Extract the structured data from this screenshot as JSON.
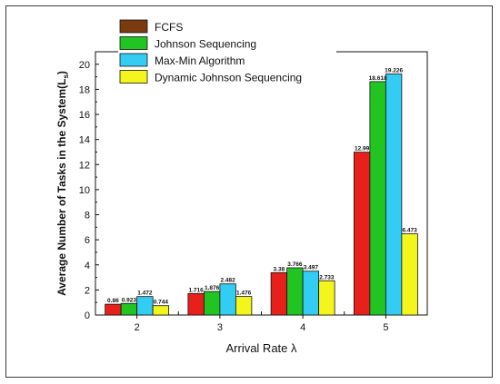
{
  "chart_data": {
    "type": "bar",
    "title": "",
    "xlabel": "Arrival Rate λ",
    "ylabel": "Average Number of Tasks in the System(L",
    "ylabel_sub": "s",
    "ylabel_close": ")",
    "ylim": [
      0,
      21
    ],
    "yticks": [
      0,
      2,
      4,
      6,
      8,
      10,
      12,
      14,
      16,
      18,
      20
    ],
    "categories": [
      "2",
      "3",
      "4",
      "5"
    ],
    "legend_position": "top-left-inside",
    "grid": false,
    "series": [
      {
        "name": "FCFS",
        "color": "#e8201c",
        "values": [
          0.86,
          1.716,
          3.38,
          12.99
        ],
        "labels": [
          "0.86",
          "1.716",
          "3.38",
          "12.99"
        ]
      },
      {
        "name": "Johnson Sequencing",
        "color": "#22c422",
        "values": [
          0.923,
          1.876,
          3.766,
          18.618
        ],
        "labels": [
          "0.923",
          "1.876",
          "3.766",
          "18.618"
        ]
      },
      {
        "name": "Max-Min Algorithm",
        "color": "#33ccf2",
        "values": [
          1.472,
          2.482,
          3.497,
          19.226
        ],
        "labels": [
          "1.472",
          "2.482",
          "3.497",
          "19.226"
        ]
      },
      {
        "name": "Dynamic Johnson Sequencing",
        "color": "#f5f51e",
        "values": [
          0.744,
          1.476,
          2.733,
          6.473
        ],
        "labels": [
          "0.744",
          "1.476",
          "2.733",
          "6.473"
        ]
      }
    ],
    "legend_swatch_colors": [
      "#7a3b10",
      "#22c422",
      "#33ccf2",
      "#f5f51e"
    ]
  }
}
